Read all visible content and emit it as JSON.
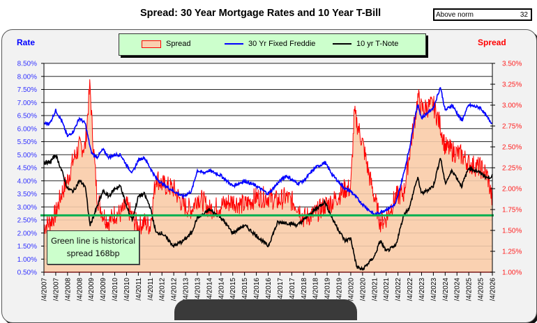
{
  "title": "Spread:  30 Year Mortgage Rates and 10 Year T-Bill",
  "norm_box": {
    "label": "Above norm",
    "value": "32"
  },
  "note": {
    "line1": "Green line is  historical",
    "line2": "spread 168bp"
  },
  "chart_data": {
    "type": "line",
    "title": "Spread:  30 Year Mortgage Rates and 10 Year T-Bill",
    "ylabel_left": "Rate",
    "ylabel_right": "Spread",
    "ylim_left": [
      0.5,
      8.5
    ],
    "ylim_right": [
      1.0,
      3.5
    ],
    "yticks_left": [
      "8.50%",
      "8.00%",
      "7.50%",
      "7.00%",
      "6.50%",
      "6.00%",
      "5.50%",
      "5.00%",
      "4.50%",
      "4.00%",
      "3.50%",
      "3.00%",
      "2.50%",
      "2.00%",
      "1.50%",
      "1.00%",
      "0.50%"
    ],
    "yticks_right": [
      "3.50%",
      "3.25%",
      "3.00%",
      "2.75%",
      "2.50%",
      "2.25%",
      "2.00%",
      "1.75%",
      "1.50%",
      "1.25%",
      "1.00%"
    ],
    "xticks": [
      "/4/2007",
      "/4/2007",
      "/4/2008",
      "/4/2008",
      "/4/2009",
      "/4/2009",
      "/4/2010",
      "/4/2010",
      "/4/2011",
      "/4/2011",
      "/4/2012",
      "/4/2012",
      "/4/2013",
      "/4/2013",
      "/4/2014",
      "/4/2014",
      "/4/2015",
      "/4/2015",
      "/4/2016",
      "/4/2016",
      "/4/2017",
      "/4/2017",
      "/4/2018",
      "/4/2018",
      "/4/2019",
      "/4/2019",
      "/4/2020",
      "/4/2020",
      "/4/2021",
      "/4/2021",
      "/4/2022",
      "/4/2022",
      "/4/2023",
      "/4/2023",
      "/4/2024",
      "/4/2024",
      "/4/2025",
      "/4/2025",
      "/4/2026"
    ],
    "x_range": [
      2007.0,
      2026.0
    ],
    "grid": true,
    "legend": {
      "position": "top-center",
      "entries": [
        "Spread",
        "30 Yr Fixed Freddie",
        "10 yr T-Note"
      ]
    },
    "historical_spread_bp": 168,
    "historical_spread_line": 1.68,
    "colors": {
      "spread_fill": "#f9d0b0",
      "spread_line": "#ff0000",
      "mortgage": "#0000ff",
      "tnote": "#000000",
      "norm_line": "#00b050"
    },
    "series": [
      {
        "name": "30 Yr Fixed Freddie",
        "axis": "left",
        "x": [
          2007.0,
          2007.25,
          2007.5,
          2007.75,
          2008.0,
          2008.25,
          2008.5,
          2008.75,
          2009.0,
          2009.1,
          2009.25,
          2009.5,
          2009.75,
          2010.0,
          2010.25,
          2010.5,
          2010.75,
          2011.0,
          2011.25,
          2011.5,
          2011.75,
          2012.0,
          2012.5,
          2012.9,
          2013.25,
          2013.5,
          2013.75,
          2014.0,
          2014.5,
          2015.0,
          2015.5,
          2016.0,
          2016.5,
          2016.9,
          2017.25,
          2017.75,
          2018.0,
          2018.5,
          2018.9,
          2019.25,
          2019.75,
          2020.0,
          2020.5,
          2021.0,
          2021.5,
          2021.9,
          2022.25,
          2022.5,
          2022.75,
          2022.85,
          2023.0,
          2023.5,
          2023.8,
          2024.0,
          2024.3,
          2024.7,
          2025.0,
          2025.5,
          2025.8,
          2026.0
        ],
        "values": [
          6.2,
          6.2,
          6.7,
          6.3,
          5.7,
          5.9,
          6.4,
          6.2,
          5.1,
          5.0,
          4.9,
          5.2,
          4.9,
          5.0,
          5.0,
          4.6,
          4.3,
          4.8,
          4.9,
          4.5,
          4.1,
          3.9,
          3.6,
          3.4,
          3.6,
          4.4,
          4.3,
          4.4,
          4.2,
          3.8,
          4.0,
          3.8,
          3.5,
          3.9,
          4.2,
          3.9,
          4.0,
          4.5,
          4.7,
          4.2,
          3.7,
          3.6,
          3.1,
          2.7,
          2.9,
          3.1,
          4.3,
          5.3,
          6.6,
          6.9,
          6.4,
          6.8,
          7.6,
          6.7,
          6.9,
          6.3,
          6.9,
          6.8,
          6.4,
          6.2
        ]
      },
      {
        "name": "10 yr T-Note",
        "axis": "left",
        "x": [
          2007.0,
          2007.25,
          2007.5,
          2007.75,
          2008.0,
          2008.25,
          2008.5,
          2008.75,
          2008.95,
          2009.0,
          2009.25,
          2009.5,
          2009.75,
          2010.0,
          2010.25,
          2010.5,
          2010.75,
          2011.0,
          2011.25,
          2011.5,
          2011.75,
          2012.0,
          2012.5,
          2012.9,
          2013.25,
          2013.5,
          2013.75,
          2014.0,
          2014.5,
          2015.0,
          2015.5,
          2016.0,
          2016.5,
          2016.9,
          2017.25,
          2017.75,
          2018.0,
          2018.5,
          2018.9,
          2019.25,
          2019.75,
          2020.0,
          2020.25,
          2020.5,
          2021.0,
          2021.25,
          2021.5,
          2021.9,
          2022.25,
          2022.5,
          2022.75,
          2022.85,
          2023.0,
          2023.5,
          2023.8,
          2024.0,
          2024.3,
          2024.7,
          2025.0,
          2025.5,
          2025.8,
          2026.0
        ],
        "values": [
          4.7,
          4.7,
          5.0,
          4.4,
          3.7,
          3.6,
          4.0,
          3.8,
          2.3,
          2.4,
          3.0,
          3.6,
          3.4,
          3.7,
          3.8,
          3.0,
          2.5,
          3.4,
          3.5,
          3.0,
          2.0,
          2.0,
          1.5,
          1.7,
          2.0,
          2.6,
          2.7,
          2.9,
          2.6,
          2.0,
          2.3,
          1.9,
          1.5,
          2.4,
          2.4,
          2.3,
          2.5,
          2.9,
          3.2,
          2.5,
          1.7,
          1.8,
          0.7,
          0.6,
          1.1,
          1.7,
          1.3,
          1.5,
          2.7,
          3.0,
          3.9,
          4.1,
          3.5,
          3.8,
          4.9,
          3.9,
          4.4,
          3.8,
          4.5,
          4.3,
          4.1,
          4.2
        ]
      },
      {
        "name": "Spread",
        "axis": "right",
        "x": [
          2007.0,
          2007.25,
          2007.5,
          2007.75,
          2008.0,
          2008.25,
          2008.5,
          2008.75,
          2008.95,
          2009.05,
          2009.25,
          2009.5,
          2009.75,
          2010.0,
          2010.25,
          2010.5,
          2010.75,
          2011.0,
          2011.25,
          2011.5,
          2011.75,
          2012.0,
          2012.5,
          2012.9,
          2013.25,
          2013.5,
          2013.75,
          2014.0,
          2014.5,
          2015.0,
          2015.5,
          2016.0,
          2016.5,
          2016.9,
          2017.25,
          2017.75,
          2018.0,
          2018.5,
          2018.9,
          2019.25,
          2019.75,
          2020.0,
          2020.15,
          2020.3,
          2020.5,
          2020.75,
          2021.0,
          2021.25,
          2021.5,
          2021.9,
          2022.25,
          2022.5,
          2022.75,
          2022.85,
          2023.0,
          2023.5,
          2023.8,
          2024.0,
          2024.3,
          2024.7,
          2025.0,
          2025.5,
          2025.8,
          2026.0
        ],
        "values": [
          1.55,
          1.6,
          1.7,
          1.95,
          2.1,
          2.35,
          2.5,
          2.5,
          3.25,
          2.7,
          1.9,
          1.7,
          1.6,
          1.7,
          1.7,
          1.8,
          1.65,
          1.55,
          1.6,
          1.55,
          2.15,
          2.05,
          2.0,
          1.8,
          1.75,
          1.9,
          1.85,
          1.75,
          1.8,
          1.85,
          1.8,
          1.9,
          1.9,
          1.85,
          1.9,
          1.8,
          1.65,
          1.7,
          1.8,
          1.85,
          2.0,
          2.0,
          2.9,
          2.75,
          2.55,
          2.2,
          1.9,
          1.6,
          1.65,
          1.9,
          1.95,
          2.45,
          2.9,
          3.1,
          2.95,
          3.0,
          2.75,
          2.5,
          2.45,
          2.4,
          2.3,
          2.25,
          2.15,
          1.85
        ]
      }
    ]
  }
}
